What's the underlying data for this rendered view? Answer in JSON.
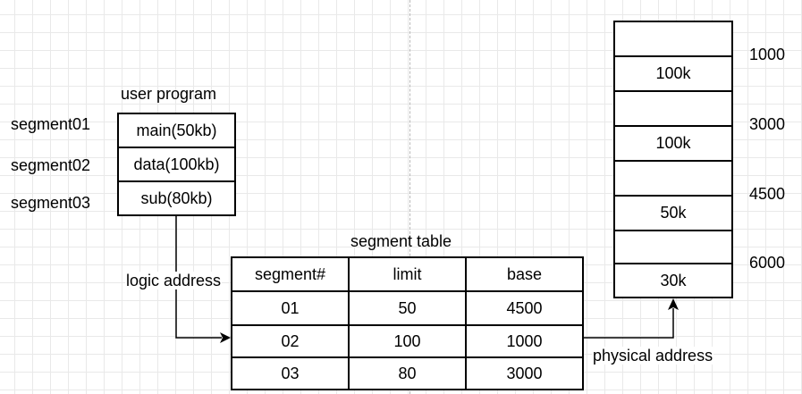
{
  "user_program": {
    "title": "user program",
    "segments": [
      {
        "name": "segment01",
        "content": "main(50kb)"
      },
      {
        "name": "segment02",
        "content": "data(100kb)"
      },
      {
        "name": "segment03",
        "content": "sub(80kb)"
      }
    ]
  },
  "segment_table": {
    "title": "segment table",
    "headers": [
      "segment#",
      "limit",
      "base"
    ],
    "rows": [
      [
        "01",
        "50",
        "4500"
      ],
      [
        "02",
        "100",
        "1000"
      ],
      [
        "03",
        "80",
        "3000"
      ]
    ]
  },
  "memory": {
    "blocks": [
      "",
      "100k",
      "",
      "100k",
      "",
      "50k",
      "",
      "30k"
    ],
    "addresses": [
      "1000",
      "3000",
      "4500",
      "6000"
    ]
  },
  "labels": {
    "logic_address": "logic address",
    "physical_address": "physical address"
  }
}
